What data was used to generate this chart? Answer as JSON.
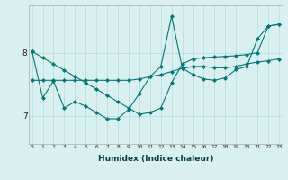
{
  "xlabel": "Humidex (Indice chaleur)",
  "background_color": "#d9f0f0",
  "line_color": "#007878",
  "grid_color": "#b8dede",
  "xticks": [
    0,
    1,
    2,
    3,
    4,
    5,
    6,
    7,
    8,
    9,
    10,
    11,
    12,
    13,
    14,
    15,
    16,
    17,
    18,
    19,
    20,
    21,
    22,
    23
  ],
  "yticks": [
    7,
    8
  ],
  "ylim": [
    6.55,
    8.75
  ],
  "xlim": [
    -0.3,
    23.3
  ],
  "series": [
    [
      8.02,
      7.28,
      7.55,
      7.12,
      7.22,
      7.15,
      7.05,
      6.95,
      6.95,
      7.1,
      7.35,
      7.62,
      7.78,
      8.58,
      7.75,
      7.65,
      7.58,
      7.56,
      7.6,
      7.73,
      7.78,
      8.22,
      8.42,
      8.45
    ],
    [
      7.56,
      7.56,
      7.56,
      7.56,
      7.56,
      7.56,
      7.56,
      7.56,
      7.56,
      7.56,
      7.58,
      7.62,
      7.65,
      7.7,
      7.75,
      7.78,
      7.78,
      7.76,
      7.76,
      7.78,
      7.82,
      7.85,
      7.87,
      7.9
    ],
    [
      8.02,
      7.92,
      7.82,
      7.72,
      7.62,
      7.52,
      7.42,
      7.32,
      7.22,
      7.12,
      7.02,
      7.05,
      7.12,
      7.52,
      7.82,
      7.9,
      7.92,
      7.93,
      7.94,
      7.95,
      7.97,
      8.0,
      8.42,
      8.45
    ]
  ]
}
